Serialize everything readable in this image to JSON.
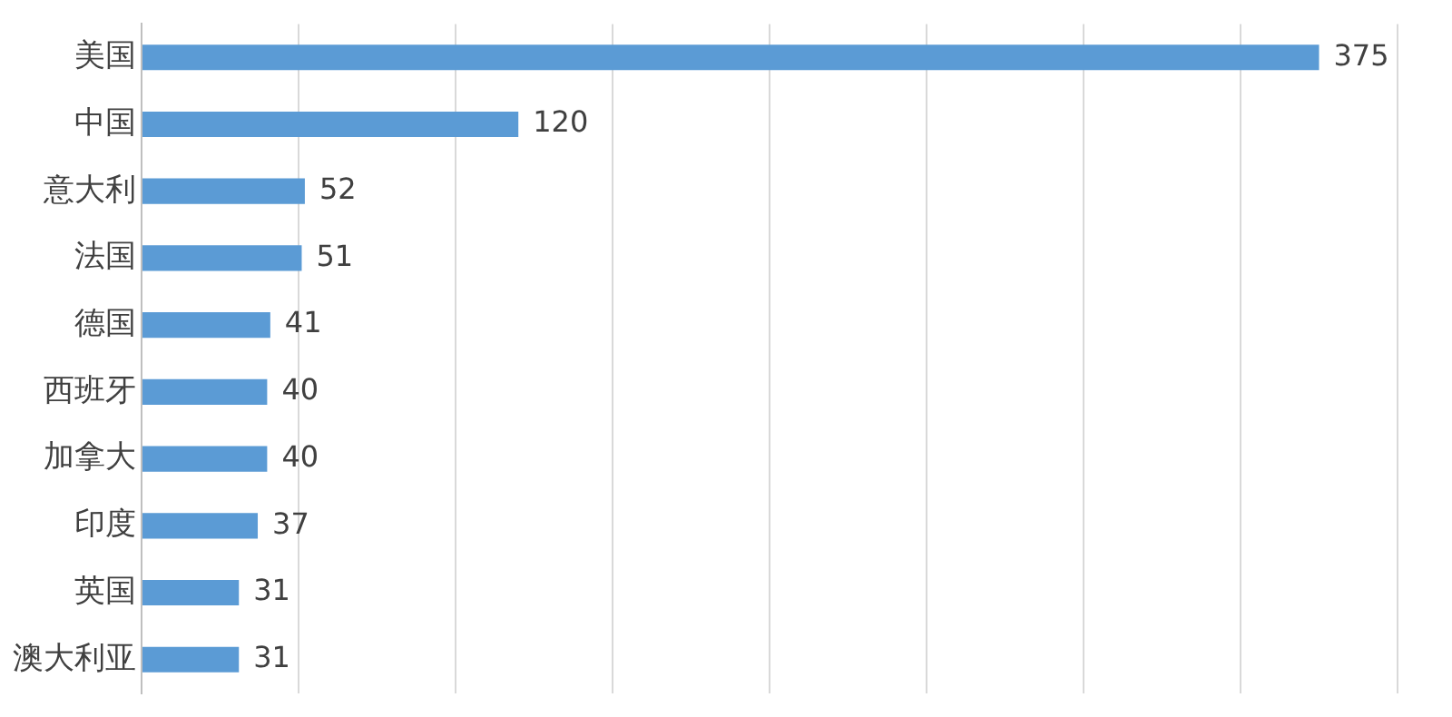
{
  "chart_data": {
    "type": "bar",
    "orientation": "horizontal",
    "categories": [
      "美国",
      "中国",
      "意大利",
      "法国",
      "德国",
      "西班牙",
      "加拿大",
      "印度",
      "英国",
      "澳大利亚"
    ],
    "values": [
      375,
      120,
      52,
      51,
      41,
      40,
      40,
      37,
      31,
      31
    ],
    "color": "#5b9bd5",
    "xlim": [
      0,
      400
    ],
    "xticks": [
      {
        "value": 0,
        "label": null
      },
      {
        "value": 50,
        "label": null
      },
      {
        "value": 100,
        "label": null
      },
      {
        "value": 150,
        "label": null
      },
      {
        "value": 200,
        "label": null
      },
      {
        "value": 250,
        "label": null
      },
      {
        "value": 300,
        "label": null
      },
      {
        "value": 350,
        "label": null
      },
      {
        "value": 400,
        "label": null
      }
    ],
    "grid": "x",
    "tick_labels": "y",
    "data_labels": true,
    "legend": false
  }
}
